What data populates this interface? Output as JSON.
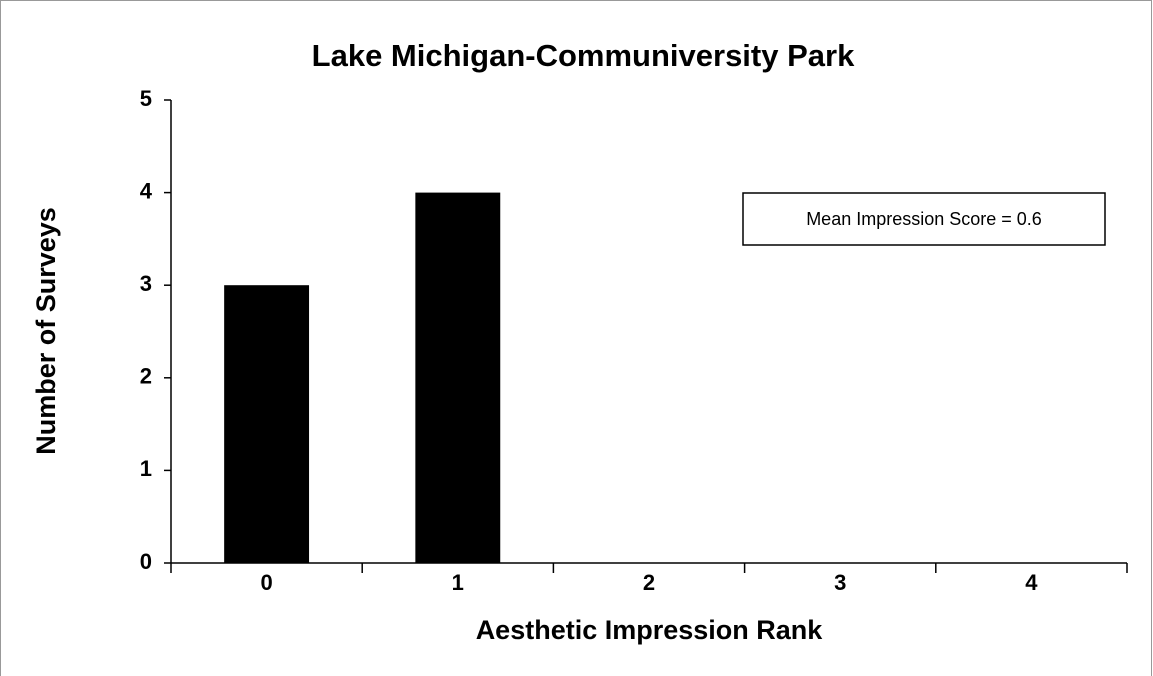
{
  "chart_data": {
    "type": "bar",
    "title": "Lake Michigan-Communiversity Park",
    "xlabel": "Aesthetic Impression Rank",
    "ylabel": "Number of Surveys",
    "annotation": "Mean Impression Score = 0.6",
    "categories": [
      "0",
      "1",
      "2",
      "3",
      "4"
    ],
    "values": [
      3,
      4,
      0,
      0,
      0
    ],
    "color": "#000000",
    "ylim": [
      0,
      5
    ],
    "yticks": [
      0,
      1,
      2,
      3,
      4,
      5
    ],
    "grid": false
  }
}
